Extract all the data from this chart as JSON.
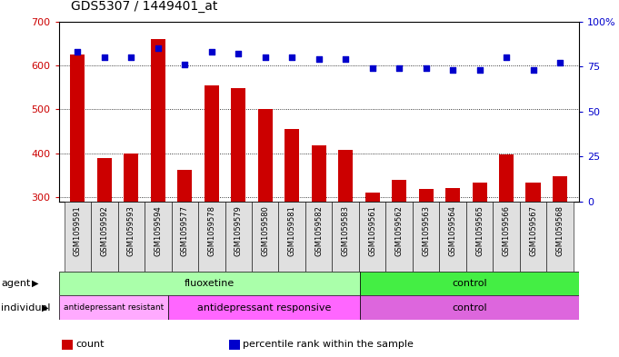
{
  "title": "GDS5307 / 1449401_at",
  "samples": [
    "GSM1059591",
    "GSM1059592",
    "GSM1059593",
    "GSM1059594",
    "GSM1059577",
    "GSM1059578",
    "GSM1059579",
    "GSM1059580",
    "GSM1059581",
    "GSM1059582",
    "GSM1059583",
    "GSM1059561",
    "GSM1059562",
    "GSM1059563",
    "GSM1059564",
    "GSM1059565",
    "GSM1059566",
    "GSM1059567",
    "GSM1059568"
  ],
  "counts": [
    625,
    390,
    400,
    660,
    362,
    555,
    548,
    500,
    455,
    418,
    408,
    311,
    340,
    318,
    322,
    334,
    398,
    334,
    348
  ],
  "percentiles": [
    83,
    80,
    80,
    85,
    76,
    83,
    82,
    80,
    80,
    79,
    79,
    74,
    74,
    74,
    73,
    73,
    80,
    73,
    77
  ],
  "ymin": 290,
  "ymax": 700,
  "yticks": [
    300,
    400,
    500,
    600,
    700
  ],
  "yright_ticks": [
    0,
    25,
    50,
    75,
    100
  ],
  "yright_labels": [
    "0",
    "25",
    "50",
    "75",
    "100%"
  ],
  "bar_color": "#cc0000",
  "dot_color": "#0000cc",
  "agent_groups": [
    {
      "label": "fluoxetine",
      "start": 0,
      "end": 11,
      "color": "#aaffaa"
    },
    {
      "label": "control",
      "start": 11,
      "end": 19,
      "color": "#44ee44"
    }
  ],
  "individual_groups": [
    {
      "label": "antidepressant resistant",
      "start": 0,
      "end": 4,
      "color": "#ffaaff"
    },
    {
      "label": "antidepressant responsive",
      "start": 4,
      "end": 11,
      "color": "#ff66ff"
    },
    {
      "label": "control",
      "start": 11,
      "end": 19,
      "color": "#dd66dd"
    }
  ],
  "legend_items": [
    {
      "color": "#cc0000",
      "label": "count"
    },
    {
      "color": "#0000cc",
      "label": "percentile rank within the sample"
    }
  ]
}
